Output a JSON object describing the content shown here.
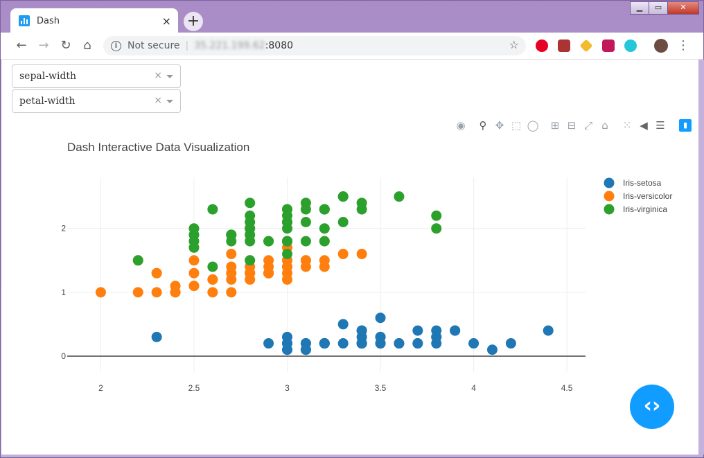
{
  "browser": {
    "tab_title": "Dash",
    "tab_close": "×",
    "new_tab": "+",
    "security_label": "Not secure",
    "url_host": "35.221.199.62",
    "url_port": ":8080",
    "window_controls": {
      "minimize": "▁",
      "maximize": "▭",
      "close": "✕"
    },
    "icons": [
      "back-icon",
      "forward-icon",
      "reload-icon",
      "home-icon",
      "info-icon",
      "bookmark-star-icon",
      "pinterest-icon",
      "pdf-icon",
      "binance-icon",
      "extension-icon",
      "vpn-icon",
      "profile-avatar",
      "menu-icon"
    ]
  },
  "controls": {
    "x_dropdown": {
      "value": "sepal-width",
      "clear": "×"
    },
    "y_dropdown": {
      "value": "petal-width",
      "clear": "×"
    }
  },
  "modebar_icons": [
    "camera-icon",
    "zoom-icon",
    "pan-icon",
    "box-select-icon",
    "lasso-icon",
    "zoom-in-icon",
    "zoom-out-icon",
    "autoscale-icon",
    "reset-axes-icon",
    "spike-lines-icon",
    "hover-closest-icon",
    "hover-compare-icon",
    "plotly-logo-icon"
  ],
  "chart_data": {
    "type": "scatter",
    "title": "Dash Interactive Data Visualization",
    "xlabel": "",
    "ylabel": "",
    "xlim": [
      1.82,
      4.6
    ],
    "ylim": [
      -0.25,
      2.8
    ],
    "x_ticks": [
      "2",
      "2.5",
      "3",
      "3.5",
      "4",
      "4.5"
    ],
    "y_ticks": [
      "0",
      "1",
      "2"
    ],
    "grid": true,
    "legend_position": "top-right",
    "series": [
      {
        "name": "Iris-setosa",
        "color": "#1f77b4",
        "x": [
          3.5,
          3.0,
          3.2,
          3.1,
          3.6,
          3.9,
          3.4,
          3.4,
          2.9,
          3.1,
          3.7,
          3.4,
          3.0,
          3.0,
          4.0,
          4.4,
          3.9,
          3.5,
          3.8,
          3.8,
          3.4,
          3.7,
          3.6,
          3.3,
          3.4,
          3.0,
          3.4,
          3.5,
          3.4,
          3.2,
          3.1,
          3.4,
          4.1,
          4.2,
          3.1,
          3.2,
          3.5,
          3.1,
          3.0,
          3.4,
          3.5,
          2.3,
          3.2,
          3.5,
          3.8,
          3.0,
          3.8,
          3.2,
          3.7,
          3.3
        ],
        "y": [
          0.2,
          0.2,
          0.2,
          0.2,
          0.2,
          0.4,
          0.3,
          0.2,
          0.2,
          0.1,
          0.2,
          0.2,
          0.1,
          0.1,
          0.2,
          0.4,
          0.4,
          0.3,
          0.3,
          0.3,
          0.2,
          0.4,
          0.2,
          0.5,
          0.2,
          0.2,
          0.4,
          0.2,
          0.2,
          0.2,
          0.2,
          0.4,
          0.1,
          0.2,
          0.1,
          0.2,
          0.2,
          0.1,
          0.2,
          0.2,
          0.3,
          0.3,
          0.2,
          0.6,
          0.4,
          0.3,
          0.2,
          0.2,
          0.2,
          0.2
        ]
      },
      {
        "name": "Iris-versicolor",
        "color": "#ff7f0e",
        "x": [
          3.2,
          3.2,
          3.1,
          2.3,
          2.8,
          2.8,
          3.3,
          2.4,
          2.9,
          2.7,
          2.0,
          3.0,
          2.2,
          2.9,
          2.9,
          3.1,
          3.0,
          2.7,
          2.2,
          2.5,
          3.2,
          2.8,
          2.5,
          2.8,
          2.9,
          3.0,
          2.8,
          3.0,
          2.9,
          2.6,
          2.4,
          2.4,
          2.7,
          2.7,
          3.0,
          3.4,
          3.1,
          2.3,
          3.0,
          2.5,
          2.6,
          3.0,
          2.6,
          2.3,
          2.7,
          3.0,
          2.9,
          2.9,
          2.5,
          2.8
        ],
        "y": [
          1.4,
          1.5,
          1.5,
          1.3,
          1.5,
          1.3,
          1.6,
          1.0,
          1.3,
          1.4,
          1.0,
          1.5,
          1.0,
          1.4,
          1.3,
          1.4,
          1.5,
          1.0,
          1.5,
          1.1,
          1.8,
          1.3,
          1.5,
          1.2,
          1.3,
          1.4,
          1.4,
          1.7,
          1.5,
          1.0,
          1.1,
          1.0,
          1.2,
          1.6,
          1.5,
          1.6,
          1.5,
          1.3,
          1.3,
          1.3,
          1.2,
          1.4,
          1.2,
          1.0,
          1.3,
          1.2,
          1.3,
          1.3,
          1.1,
          1.3
        ]
      },
      {
        "name": "Iris-virginica",
        "color": "#2ca02c",
        "x": [
          3.3,
          2.7,
          3.0,
          2.9,
          3.0,
          3.0,
          2.5,
          2.9,
          2.5,
          3.6,
          3.2,
          2.7,
          3.0,
          2.5,
          2.8,
          3.2,
          3.0,
          3.8,
          2.6,
          2.2,
          3.2,
          2.8,
          2.8,
          2.7,
          3.3,
          3.2,
          2.8,
          3.0,
          2.8,
          3.0,
          2.8,
          3.8,
          2.8,
          2.8,
          2.6,
          3.0,
          3.4,
          3.1,
          3.0,
          3.1,
          3.1,
          3.1,
          2.7,
          3.2,
          3.3,
          3.0,
          2.5,
          3.0,
          3.4,
          3.0
        ],
        "y": [
          2.5,
          1.9,
          2.1,
          1.8,
          2.2,
          2.1,
          1.7,
          1.8,
          1.8,
          2.5,
          2.0,
          1.9,
          2.1,
          2.0,
          2.4,
          2.3,
          1.8,
          2.2,
          2.3,
          1.5,
          2.3,
          2.0,
          2.0,
          1.8,
          2.1,
          1.8,
          1.8,
          1.8,
          2.1,
          1.6,
          1.9,
          2.0,
          2.2,
          1.5,
          1.4,
          2.3,
          2.4,
          1.8,
          1.8,
          2.1,
          2.4,
          2.3,
          1.9,
          2.3,
          2.5,
          2.3,
          1.9,
          2.0,
          2.3,
          1.8
        ]
      }
    ]
  }
}
